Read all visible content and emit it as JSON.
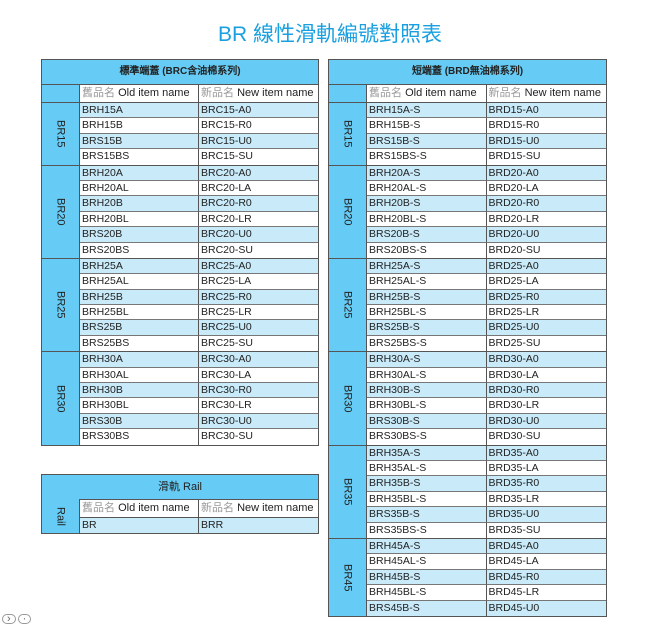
{
  "title": "BR 線性滑軌編號對照表",
  "colors": {
    "header": "#66ccf5",
    "row_alt": "#c9eaf9",
    "title": "#1aa0e0"
  },
  "column_headers": {
    "old_prefix": "舊品名",
    "old": "Old item name",
    "new_prefix": "新品名",
    "new": "New item name"
  },
  "left_table": {
    "header": "標準端蓋 (BRC含油棉系列)",
    "groups": [
      {
        "label": "BR15",
        "rows": [
          [
            "BRH15A",
            "BRC15-A0"
          ],
          [
            "BRH15B",
            "BRC15-R0"
          ],
          [
            "BRS15B",
            "BRC15-U0"
          ],
          [
            "BRS15BS",
            "BRC15-SU"
          ]
        ]
      },
      {
        "label": "BR20",
        "rows": [
          [
            "BRH20A",
            "BRC20-A0"
          ],
          [
            "BRH20AL",
            "BRC20-LA"
          ],
          [
            "BRH20B",
            "BRC20-R0"
          ],
          [
            "BRH20BL",
            "BRC20-LR"
          ],
          [
            "BRS20B",
            "BRC20-U0"
          ],
          [
            "BRS20BS",
            "BRC20-SU"
          ]
        ]
      },
      {
        "label": "BR25",
        "rows": [
          [
            "BRH25A",
            "BRC25-A0"
          ],
          [
            "BRH25AL",
            "BRC25-LA"
          ],
          [
            "BRH25B",
            "BRC25-R0"
          ],
          [
            "BRH25BL",
            "BRC25-LR"
          ],
          [
            "BRS25B",
            "BRC25-U0"
          ],
          [
            "BRS25BS",
            "BRC25-SU"
          ]
        ]
      },
      {
        "label": "BR30",
        "rows": [
          [
            "BRH30A",
            "BRC30-A0"
          ],
          [
            "BRH30AL",
            "BRC30-LA"
          ],
          [
            "BRH30B",
            "BRC30-R0"
          ],
          [
            "BRH30BL",
            "BRC30-LR"
          ],
          [
            "BRS30B",
            "BRC30-U0"
          ],
          [
            "BRS30BS",
            "BRC30-SU"
          ]
        ]
      }
    ]
  },
  "right_table": {
    "header": "短端蓋 (BRD無油棉系列)",
    "groups": [
      {
        "label": "BR15",
        "rows": [
          [
            "BRH15A-S",
            "BRD15-A0"
          ],
          [
            "BRH15B-S",
            "BRD15-R0"
          ],
          [
            "BRS15B-S",
            "BRD15-U0"
          ],
          [
            "BRS15BS-S",
            "BRD15-SU"
          ]
        ]
      },
      {
        "label": "BR20",
        "rows": [
          [
            "BRH20A-S",
            "BRD20-A0"
          ],
          [
            "BRH20AL-S",
            "BRD20-LA"
          ],
          [
            "BRH20B-S",
            "BRD20-R0"
          ],
          [
            "BRH20BL-S",
            "BRD20-LR"
          ],
          [
            "BRS20B-S",
            "BRD20-U0"
          ],
          [
            "BRS20BS-S",
            "BRD20-SU"
          ]
        ]
      },
      {
        "label": "BR25",
        "rows": [
          [
            "BRH25A-S",
            "BRD25-A0"
          ],
          [
            "BRH25AL-S",
            "BRD25-LA"
          ],
          [
            "BRH25B-S",
            "BRD25-R0"
          ],
          [
            "BRH25BL-S",
            "BRD25-LR"
          ],
          [
            "BRS25B-S",
            "BRD25-U0"
          ],
          [
            "BRS25BS-S",
            "BRD25-SU"
          ]
        ]
      },
      {
        "label": "BR30",
        "rows": [
          [
            "BRH30A-S",
            "BRD30-A0"
          ],
          [
            "BRH30AL-S",
            "BRD30-LA"
          ],
          [
            "BRH30B-S",
            "BRD30-R0"
          ],
          [
            "BRH30BL-S",
            "BRD30-LR"
          ],
          [
            "BRS30B-S",
            "BRD30-U0"
          ],
          [
            "BRS30BS-S",
            "BRD30-SU"
          ]
        ]
      },
      {
        "label": "BR35",
        "rows": [
          [
            "BRH35A-S",
            "BRD35-A0"
          ],
          [
            "BRH35AL-S",
            "BRD35-LA"
          ],
          [
            "BRH35B-S",
            "BRD35-R0"
          ],
          [
            "BRH35BL-S",
            "BRD35-LR"
          ],
          [
            "BRS35B-S",
            "BRD35-U0"
          ],
          [
            "BRS35BS-S",
            "BRD35-SU"
          ]
        ]
      },
      {
        "label": "BR45",
        "rows": [
          [
            "BRH45A-S",
            "BRD45-A0"
          ],
          [
            "BRH45AL-S",
            "BRD45-LA"
          ],
          [
            "BRH45B-S",
            "BRD45-R0"
          ],
          [
            "BRH45BL-S",
            "BRD45-LR"
          ],
          [
            "BRS45B-S",
            "BRD45-U0"
          ]
        ]
      }
    ]
  },
  "rail_table": {
    "header": "滑軌  Rail",
    "groups": [
      {
        "label": "Rail",
        "rows": [
          [
            "BR",
            "BRR"
          ]
        ]
      }
    ]
  },
  "nav": {
    "next": "›",
    "dot": "·"
  }
}
